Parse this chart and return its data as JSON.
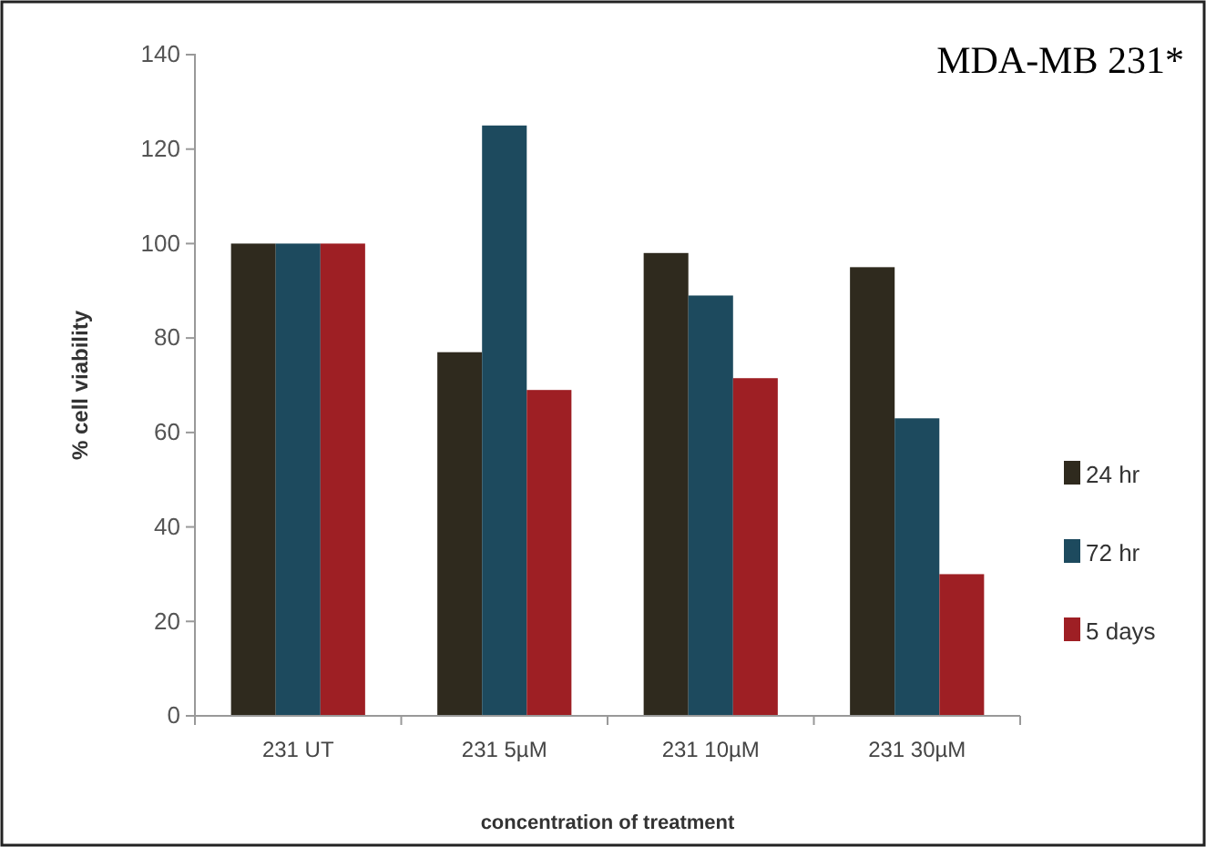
{
  "chart_data": {
    "type": "bar",
    "title": "MDA-MB 231*",
    "xlabel": "concentration of treatment",
    "ylabel": "% cell viability",
    "categories": [
      "231 UT",
      "231 5µM",
      "231 10µM",
      "231 30µM"
    ],
    "series": [
      {
        "name": "24 hr",
        "color": "#2f2a1e",
        "values": [
          100,
          77,
          98,
          95
        ]
      },
      {
        "name": "72 hr",
        "color": "#1d4a5e",
        "values": [
          100,
          125,
          89,
          63
        ]
      },
      {
        "name": "5 days",
        "color": "#9e1f24",
        "values": [
          100,
          69,
          71.5,
          30
        ]
      }
    ],
    "ylim": [
      0,
      140
    ],
    "yticks": [
      0,
      20,
      40,
      60,
      80,
      100,
      120,
      140
    ],
    "grid": false,
    "legend": "right"
  }
}
